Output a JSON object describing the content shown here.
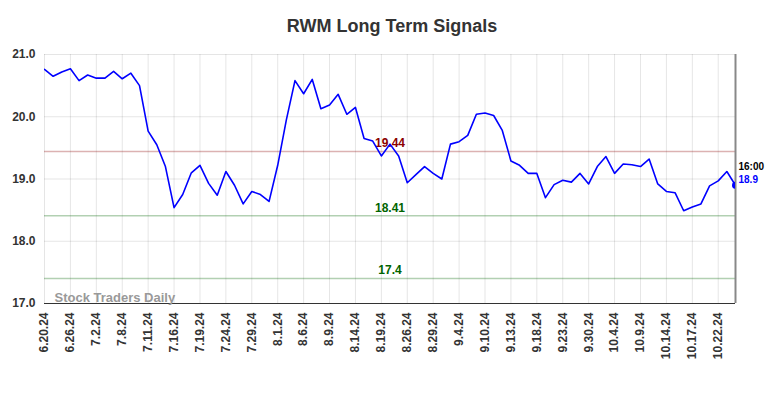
{
  "chart_data": {
    "type": "line",
    "title": "RWM Long Term Signals",
    "categories": [
      "6.20.24",
      null,
      null,
      "6.26.24",
      null,
      null,
      "7.2.24",
      null,
      null,
      "7.8.24",
      null,
      null,
      "7.11.24",
      null,
      null,
      "7.16.24",
      null,
      null,
      "7.19.24",
      null,
      null,
      "7.24.24",
      null,
      null,
      "7.29.24",
      null,
      null,
      "8.1.24",
      null,
      null,
      "8.6.24",
      null,
      null,
      "8.9.24",
      null,
      null,
      "8.14.24",
      null,
      null,
      "8.19.24",
      null,
      null,
      "8.26.24",
      null,
      null,
      "8.29.24",
      null,
      null,
      "9.4.24",
      null,
      null,
      "9.10.24",
      null,
      null,
      "9.13.24",
      null,
      null,
      "9.18.24",
      null,
      null,
      "9.23.24",
      null,
      null,
      "9.30.24",
      null,
      null,
      "10.4.24",
      null,
      null,
      "10.9.24",
      null,
      null,
      "10.14.24",
      null,
      null,
      "10.17.24",
      null,
      null,
      "10.22.24",
      null,
      null
    ],
    "series": [
      {
        "name": "RWM",
        "color": "#0000ff",
        "values": [
          20.76,
          20.65,
          20.72,
          20.77,
          20.58,
          20.67,
          20.62,
          20.62,
          20.73,
          20.61,
          20.7,
          20.5,
          19.77,
          19.55,
          19.2,
          18.54,
          18.75,
          19.1,
          19.22,
          18.93,
          18.74,
          19.12,
          18.9,
          18.6,
          18.8,
          18.75,
          18.64,
          19.22,
          19.95,
          20.58,
          20.37,
          20.6,
          20.13,
          20.19,
          20.36,
          20.04,
          20.15,
          19.65,
          19.61,
          19.37,
          19.56,
          19.37,
          18.94,
          19.07,
          19.2,
          19.09,
          19.0,
          19.56,
          19.6,
          19.7,
          20.04,
          20.06,
          20.02,
          19.78,
          19.29,
          19.22,
          19.09,
          19.09,
          18.7,
          18.91,
          18.98,
          18.95,
          19.09,
          18.92,
          19.2,
          19.36,
          19.09,
          19.24,
          19.23,
          19.2,
          19.32,
          18.92,
          18.8,
          18.78,
          18.49,
          18.55,
          18.6,
          18.89,
          18.97,
          19.12,
          18.9
        ]
      }
    ],
    "ylim": [
      17,
      21
    ],
    "yticks": [
      17,
      18,
      19,
      20,
      21
    ],
    "grid": true,
    "hlines": [
      {
        "value": 19.44,
        "color": "#8b0000"
      },
      {
        "value": 18.41,
        "color": "#006400"
      },
      {
        "value": 17.4,
        "color": "#006400"
      }
    ],
    "end_label": {
      "time": "16:00",
      "value": 18.9
    },
    "watermark": "Stock Traders Daily"
  }
}
